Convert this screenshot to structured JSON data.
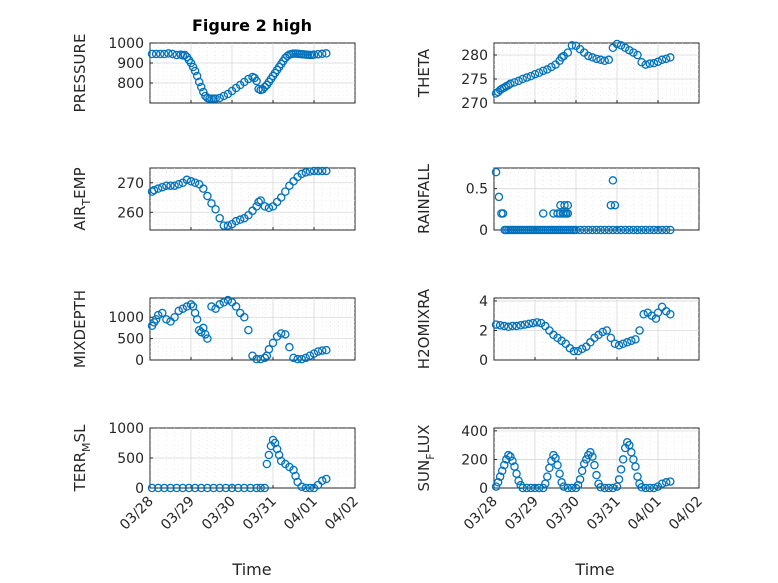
{
  "figure": {
    "title": "Figure 2 high"
  },
  "colors": {
    "marker": "#0072BD",
    "axis": "#262626",
    "grid": "#d8d8d8"
  },
  "chart_data": [
    {
      "id": "pressure",
      "type": "scatter",
      "ylabel": "PRESSURE",
      "xlim": [
        0,
        5
      ],
      "ylim": [
        700,
        1000
      ],
      "yticks": [
        800,
        900,
        1000
      ],
      "ytick_labels": [
        "800",
        "900",
        "1000"
      ],
      "grid": true,
      "marker": "circle",
      "x": [
        0.05,
        0.15,
        0.25,
        0.35,
        0.45,
        0.55,
        0.65,
        0.75,
        0.8,
        0.85,
        0.9,
        0.95,
        1.0,
        1.05,
        1.1,
        1.15,
        1.2,
        1.25,
        1.3,
        1.35,
        1.4,
        1.45,
        1.5,
        1.55,
        1.6,
        1.7,
        1.8,
        1.9,
        2.0,
        2.1,
        2.2,
        2.3,
        2.4,
        2.5,
        2.55,
        2.6,
        2.65,
        2.7,
        2.75,
        2.8,
        2.85,
        2.9,
        2.95,
        3.0,
        3.05,
        3.1,
        3.15,
        3.2,
        3.25,
        3.3,
        3.35,
        3.4,
        3.45,
        3.5,
        3.55,
        3.6,
        3.65,
        3.7,
        3.75,
        3.8,
        3.85,
        3.9,
        3.95,
        4.0,
        4.1,
        4.2,
        4.3
      ],
      "y": [
        945,
        945,
        945,
        945,
        948,
        945,
        940,
        942,
        938,
        940,
        930,
        915,
        900,
        880,
        860,
        835,
        805,
        780,
        755,
        735,
        725,
        722,
        722,
        722,
        722,
        725,
        735,
        745,
        760,
        775,
        790,
        805,
        820,
        830,
        825,
        810,
        770,
        765,
        768,
        780,
        790,
        805,
        820,
        835,
        850,
        865,
        880,
        895,
        910,
        925,
        935,
        942,
        945,
        947,
        947,
        946,
        945,
        944,
        943,
        942,
        941,
        940,
        940,
        942,
        944,
        946,
        948
      ]
    },
    {
      "id": "theta",
      "type": "scatter",
      "ylabel": "THETA",
      "xlim": [
        0,
        5
      ],
      "ylim": [
        270,
        282.5
      ],
      "yticks": [
        270,
        275,
        280
      ],
      "ytick_labels": [
        "270",
        "275",
        "280"
      ],
      "grid": true,
      "marker": "circle",
      "x": [
        0.05,
        0.1,
        0.15,
        0.2,
        0.25,
        0.3,
        0.35,
        0.4,
        0.5,
        0.6,
        0.7,
        0.8,
        0.9,
        1.0,
        1.1,
        1.2,
        1.3,
        1.4,
        1.5,
        1.6,
        1.65,
        1.7,
        1.8,
        1.9,
        2.0,
        2.1,
        2.2,
        2.3,
        2.4,
        2.5,
        2.6,
        2.7,
        2.8,
        2.9,
        3.0,
        3.1,
        3.2,
        3.3,
        3.4,
        3.5,
        3.6,
        3.7,
        3.8,
        3.9,
        4.0,
        4.1,
        4.2,
        4.3
      ],
      "y": [
        272,
        272.3,
        272.7,
        273,
        273.2,
        273.5,
        273.7,
        274,
        274.3,
        274.6,
        275,
        275.3,
        275.6,
        276,
        276.3,
        276.7,
        277,
        277.5,
        278,
        278.8,
        279.5,
        279.8,
        280.5,
        282,
        281.9,
        281.2,
        280.5,
        279.8,
        279.5,
        279.2,
        279,
        278.8,
        279,
        281.5,
        282.3,
        282,
        281.5,
        281,
        280.5,
        280,
        278.5,
        278,
        278.2,
        278.3,
        278.6,
        279,
        279.2,
        279.5
      ]
    },
    {
      "id": "air_temp",
      "type": "scatter",
      "ylabel": "AIR",
      "ylabel_sub": "T",
      "ylabel_rest": "EMP",
      "xlim": [
        0,
        5
      ],
      "ylim": [
        254,
        275
      ],
      "yticks": [
        260,
        270
      ],
      "ytick_labels": [
        "260",
        "270"
      ],
      "grid": true,
      "marker": "circle",
      "x": [
        0.05,
        0.1,
        0.2,
        0.3,
        0.4,
        0.5,
        0.6,
        0.7,
        0.8,
        0.9,
        1.0,
        1.1,
        1.2,
        1.3,
        1.4,
        1.5,
        1.6,
        1.7,
        1.8,
        1.9,
        2.0,
        2.1,
        2.2,
        2.3,
        2.4,
        2.5,
        2.6,
        2.65,
        2.7,
        2.8,
        2.9,
        3.0,
        3.1,
        3.2,
        3.3,
        3.4,
        3.5,
        3.6,
        3.7,
        3.8,
        3.9,
        4.0,
        4.1,
        4.2,
        4.3
      ],
      "y": [
        267,
        267.5,
        268,
        268.5,
        269,
        269,
        269,
        269.5,
        270,
        271,
        270.5,
        270,
        269.5,
        268,
        265.5,
        263,
        261,
        258,
        255.5,
        255.5,
        256,
        257,
        257.5,
        258,
        259,
        260.5,
        262,
        263.5,
        264,
        262,
        261.5,
        262,
        263.5,
        265,
        267,
        269,
        270.5,
        272,
        273,
        273.5,
        273.8,
        274,
        274,
        274,
        274
      ]
    },
    {
      "id": "rainfall",
      "type": "scatter",
      "ylabel": "RAINFALL",
      "xlim": [
        0,
        5
      ],
      "ylim": [
        0,
        0.75
      ],
      "yticks": [
        0,
        0.5
      ],
      "ytick_labels": [
        "0",
        "0.5"
      ],
      "grid": true,
      "marker": "circle",
      "x": [
        0.05,
        0.12,
        0.18,
        0.22,
        0.26,
        0.3,
        0.35,
        0.4,
        0.45,
        0.5,
        0.55,
        0.6,
        0.65,
        0.7,
        0.75,
        0.8,
        0.85,
        0.9,
        0.95,
        1.0,
        1.05,
        1.1,
        1.15,
        1.2,
        1.25,
        1.3,
        1.35,
        1.4,
        1.45,
        1.5,
        1.55,
        1.6,
        1.65,
        1.7,
        1.75,
        1.8,
        1.85,
        1.9,
        1.95,
        2.0,
        2.1,
        2.2,
        2.3,
        2.4,
        2.5,
        2.6,
        2.7,
        2.8,
        2.9,
        3.0,
        3.1,
        3.2,
        3.3,
        3.4,
        3.5,
        3.6,
        3.7,
        3.8,
        3.9,
        4.0,
        4.1,
        4.2,
        4.3,
        1.2,
        1.45,
        1.55,
        1.62,
        1.68,
        1.72,
        1.76,
        1.8,
        1.62,
        1.72,
        1.8,
        2.85,
        2.95,
        2.9
      ],
      "y": [
        0.7,
        0.4,
        0.2,
        0.2,
        0,
        0,
        0,
        0,
        0,
        0,
        0,
        0,
        0,
        0,
        0,
        0,
        0,
        0,
        0,
        0,
        0,
        0,
        0,
        0,
        0,
        0,
        0,
        0,
        0,
        0,
        0,
        0,
        0,
        0,
        0,
        0,
        0,
        0,
        0,
        0,
        0,
        0,
        0,
        0,
        0,
        0,
        0,
        0,
        0,
        0,
        0,
        0,
        0,
        0,
        0,
        0,
        0,
        0,
        0,
        0,
        0,
        0,
        0,
        0.2,
        0.2,
        0.2,
        0.2,
        0.2,
        0.2,
        0.2,
        0.2,
        0.3,
        0.3,
        0.3,
        0.3,
        0.3,
        0.6
      ]
    },
    {
      "id": "mixdepth",
      "type": "scatter",
      "ylabel": "MIXDEPTH",
      "xlim": [
        0,
        5
      ],
      "ylim": [
        0,
        1450
      ],
      "yticks": [
        0,
        500,
        1000
      ],
      "ytick_labels": [
        "0",
        "500",
        "1000"
      ],
      "grid": true,
      "marker": "circle",
      "x": [
        0.05,
        0.1,
        0.15,
        0.2,
        0.3,
        0.4,
        0.5,
        0.6,
        0.7,
        0.8,
        0.9,
        1.0,
        1.05,
        1.1,
        1.15,
        1.2,
        1.25,
        1.3,
        1.35,
        1.4,
        1.5,
        1.6,
        1.7,
        1.8,
        1.9,
        2.0,
        2.1,
        2.2,
        2.3,
        2.4,
        2.5,
        2.6,
        2.7,
        2.8,
        2.85,
        2.9,
        3.0,
        3.1,
        3.2,
        3.3,
        3.4,
        3.5,
        3.6,
        3.7,
        3.8,
        3.9,
        4.0,
        4.1,
        4.2,
        4.3
      ],
      "y": [
        800,
        880,
        950,
        1050,
        1100,
        950,
        900,
        1000,
        1150,
        1200,
        1250,
        1300,
        1250,
        1100,
        950,
        700,
        650,
        750,
        600,
        500,
        1250,
        1200,
        1300,
        1350,
        1400,
        1350,
        1250,
        1100,
        1000,
        700,
        100,
        20,
        20,
        50,
        100,
        250,
        400,
        550,
        620,
        600,
        300,
        50,
        20,
        20,
        50,
        100,
        150,
        200,
        220,
        230
      ]
    },
    {
      "id": "h2omixra",
      "type": "scatter",
      "ylabel": "H2OMIXRA",
      "xlim": [
        0,
        5
      ],
      "ylim": [
        0,
        4.2
      ],
      "yticks": [
        0,
        2,
        4
      ],
      "ytick_labels": [
        "0",
        "2",
        "4"
      ],
      "grid": true,
      "marker": "circle",
      "x": [
        0.05,
        0.15,
        0.25,
        0.35,
        0.45,
        0.55,
        0.65,
        0.75,
        0.85,
        0.95,
        1.05,
        1.15,
        1.25,
        1.35,
        1.45,
        1.55,
        1.65,
        1.75,
        1.85,
        1.95,
        2.05,
        2.15,
        2.25,
        2.35,
        2.45,
        2.55,
        2.65,
        2.75,
        2.85,
        2.95,
        3.05,
        3.15,
        3.25,
        3.35,
        3.45,
        3.55,
        3.65,
        3.75,
        3.85,
        3.95,
        4.0,
        4.1,
        4.2,
        4.3
      ],
      "y": [
        2.4,
        2.35,
        2.3,
        2.25,
        2.3,
        2.3,
        2.35,
        2.4,
        2.45,
        2.5,
        2.55,
        2.5,
        2.3,
        2,
        1.7,
        1.5,
        1.3,
        1.1,
        0.8,
        0.6,
        0.6,
        0.75,
        0.9,
        1.2,
        1.5,
        1.7,
        1.9,
        2,
        1.5,
        1.1,
        1,
        1.1,
        1.2,
        1.3,
        1.4,
        2,
        3.1,
        3.2,
        3,
        2.8,
        3.2,
        3.6,
        3.3,
        3.1
      ]
    },
    {
      "id": "terr_msl",
      "type": "scatter",
      "ylabel": "TERR",
      "ylabel_sub": "M",
      "ylabel_rest": "SL",
      "xlim": [
        0,
        5
      ],
      "ylim": [
        0,
        1000
      ],
      "yticks": [
        0,
        500,
        1000
      ],
      "ytick_labels": [
        "0",
        "500",
        "1000"
      ],
      "grid": true,
      "marker": "circle",
      "x": [
        0.05,
        0.2,
        0.35,
        0.5,
        0.65,
        0.8,
        0.95,
        1.1,
        1.25,
        1.4,
        1.55,
        1.7,
        1.85,
        2.0,
        2.15,
        2.3,
        2.45,
        2.6,
        2.7,
        2.8,
        2.85,
        2.9,
        2.95,
        3.0,
        3.05,
        3.1,
        3.15,
        3.2,
        3.3,
        3.4,
        3.5,
        3.55,
        3.6,
        3.7,
        3.8,
        3.9,
        4.0,
        4.1,
        4.2,
        4.3
      ],
      "y": [
        0,
        0,
        0,
        0,
        0,
        0,
        0,
        0,
        0,
        0,
        0,
        0,
        0,
        0,
        0,
        0,
        0,
        0,
        0,
        0,
        400,
        550,
        700,
        800,
        750,
        650,
        550,
        450,
        400,
        350,
        300,
        200,
        100,
        20,
        0,
        0,
        0,
        50,
        120,
        150
      ]
    },
    {
      "id": "sun_flux",
      "type": "scatter",
      "ylabel": "SUN",
      "ylabel_sub": "F",
      "ylabel_rest": "LUX",
      "xlim": [
        0,
        5
      ],
      "ylim": [
        0,
        420
      ],
      "yticks": [
        0,
        200,
        400
      ],
      "ytick_labels": [
        "0",
        "200",
        "400"
      ],
      "grid": true,
      "marker": "circle",
      "x": [
        0.05,
        0.1,
        0.15,
        0.2,
        0.25,
        0.3,
        0.35,
        0.4,
        0.45,
        0.5,
        0.55,
        0.6,
        0.65,
        0.7,
        0.8,
        0.9,
        1.0,
        1.1,
        1.2,
        1.25,
        1.3,
        1.35,
        1.4,
        1.45,
        1.5,
        1.55,
        1.6,
        1.65,
        1.7,
        1.8,
        1.9,
        2.0,
        2.05,
        2.1,
        2.15,
        2.2,
        2.25,
        2.3,
        2.35,
        2.4,
        2.45,
        2.5,
        2.55,
        2.6,
        2.7,
        2.8,
        2.9,
        3.0,
        3.05,
        3.1,
        3.15,
        3.2,
        3.25,
        3.3,
        3.35,
        3.4,
        3.45,
        3.5,
        3.55,
        3.6,
        3.7,
        3.8,
        3.9,
        4.0,
        4.1,
        4.2,
        4.3
      ],
      "y": [
        10,
        40,
        80,
        120,
        160,
        200,
        230,
        220,
        190,
        150,
        100,
        50,
        20,
        0,
        0,
        0,
        0,
        0,
        0,
        30,
        80,
        140,
        190,
        230,
        210,
        160,
        100,
        40,
        10,
        0,
        0,
        0,
        20,
        60,
        120,
        170,
        200,
        230,
        250,
        220,
        160,
        90,
        30,
        5,
        0,
        0,
        0,
        10,
        60,
        130,
        200,
        280,
        320,
        300,
        250,
        200,
        150,
        80,
        30,
        5,
        0,
        0,
        0,
        10,
        30,
        40,
        45
      ]
    }
  ],
  "x_axis": {
    "tick_labels": [
      "03/28",
      "03/29",
      "03/30",
      "03/31",
      "04/01",
      "04/02"
    ],
    "label": "Time"
  }
}
